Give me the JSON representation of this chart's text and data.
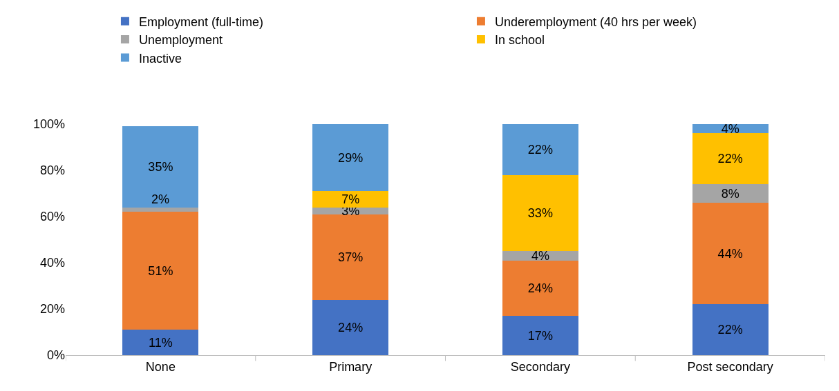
{
  "chart_data": {
    "type": "bar",
    "stacked": true,
    "categories": [
      "None",
      "Primary",
      "Secondary",
      "Post secondary"
    ],
    "series": [
      {
        "name": "Employment (full-time)",
        "color": "#4472c4",
        "values": [
          11,
          24,
          17,
          22
        ],
        "value_labels": [
          "11%",
          "24%",
          "17%",
          "22%"
        ]
      },
      {
        "name": "Underemployment (40 hrs per week)",
        "color": "#ed7d31",
        "values": [
          51,
          37,
          24,
          44
        ],
        "value_labels": [
          "51%",
          "37%",
          "24%",
          "44%"
        ]
      },
      {
        "name": "Unemployment",
        "color": "#a5a5a5",
        "values": [
          2,
          3,
          4,
          8
        ],
        "value_labels": [
          "2%",
          "3%",
          "4%",
          "8%"
        ]
      },
      {
        "name": "In school",
        "color": "#ffc000",
        "values": [
          null,
          7,
          33,
          22
        ],
        "value_labels": [
          null,
          "7%",
          "33%",
          "22%"
        ]
      },
      {
        "name": "Inactive",
        "color": "#5b9bd5",
        "values": [
          35,
          29,
          22,
          4
        ],
        "value_labels": [
          "35%",
          "29%",
          "22%",
          "4%"
        ]
      }
    ],
    "ylim": [
      0,
      100
    ],
    "yticks": [
      {
        "value": 0,
        "label": "0%"
      },
      {
        "value": 20,
        "label": "20%"
      },
      {
        "value": 40,
        "label": "40%"
      },
      {
        "value": 60,
        "label": "60%"
      },
      {
        "value": 80,
        "label": "80%"
      },
      {
        "value": 100,
        "label": "100%"
      }
    ],
    "grid": false,
    "legend": "top"
  }
}
